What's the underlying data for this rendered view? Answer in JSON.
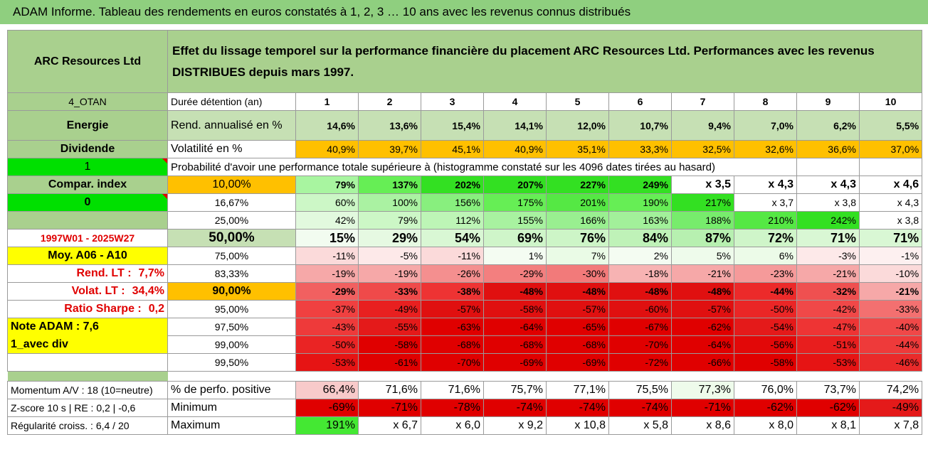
{
  "title": "ADAM Informe. Tableau des rendements en euros constatés à 1, 2, 3 … 10 ans avec les revenus connus distribués",
  "company": "ARC Resources Ltd",
  "description": "Effet du lissage temporel sur la performance financière du placement ARC Resources Ltd. Performances avec les revenus DISTRIBUES depuis mars 1997.",
  "left": {
    "code": "4_OTAN",
    "sector": "Energie",
    "dividend": "Dividende",
    "one": "1",
    "compar": "Compar. index",
    "zero": "0",
    "period": "1997W01 - 2025W27",
    "moy": "Moy. A06 - A10",
    "rend_label": "Rend. LT :",
    "rend_value": "7,7%",
    "volat_label": "Volat. LT :",
    "volat_value": "34,4%",
    "sharpe_label": "Ratio Sharpe :",
    "sharpe_value": "0,2",
    "note": "Note ADAM : 7,6",
    "avec_div": "1_avec div",
    "momentum": "Momentum A/V : 18 (10=neutre)",
    "zscore": "Z-score 10 s | RE : 0,2 | -0,6",
    "regularite": "Régularité croiss. : 6,4 / 20"
  },
  "labels": {
    "duree": "Durée détention (an)",
    "rend": "Rend. annualisé en %",
    "volat": "Volatilité en %",
    "proba": "Probabilité d'avoir une performance totale supérieure à (histogramme constaté sur les 4096 dates tirées au hasard)",
    "pct_pos": "% de perfo. positive",
    "minimum": "Minimum",
    "maximum": "Maximum"
  },
  "years": [
    "1",
    "2",
    "3",
    "4",
    "5",
    "6",
    "7",
    "8",
    "9",
    "10"
  ],
  "rend": [
    "14,6%",
    "13,6%",
    "15,4%",
    "14,1%",
    "12,0%",
    "10,7%",
    "9,4%",
    "7,0%",
    "6,2%",
    "5,5%"
  ],
  "volat": [
    "40,9%",
    "39,7%",
    "45,1%",
    "40,9%",
    "35,1%",
    "33,3%",
    "32,5%",
    "32,6%",
    "36,6%",
    "37,0%"
  ],
  "prob_rows": [
    {
      "q": "10,00%",
      "v": [
        "79%",
        "137%",
        "202%",
        "207%",
        "227%",
        "249%",
        "x 3,5",
        "x 4,3",
        "x 4,3",
        "x 4,6"
      ]
    },
    {
      "q": "16,67%",
      "v": [
        "60%",
        "100%",
        "156%",
        "175%",
        "201%",
        "190%",
        "217%",
        "x 3,7",
        "x 3,8",
        "x 4,3"
      ]
    },
    {
      "q": "25,00%",
      "v": [
        "42%",
        "79%",
        "112%",
        "155%",
        "166%",
        "163%",
        "188%",
        "210%",
        "242%",
        "x 3,8"
      ]
    },
    {
      "q": "50,00%",
      "v": [
        "15%",
        "29%",
        "54%",
        "69%",
        "76%",
        "84%",
        "87%",
        "72%",
        "71%",
        "71%"
      ]
    },
    {
      "q": "75,00%",
      "v": [
        "-11%",
        "-5%",
        "-11%",
        "1%",
        "7%",
        "2%",
        "5%",
        "6%",
        "-3%",
        "-1%"
      ]
    },
    {
      "q": "83,33%",
      "v": [
        "-19%",
        "-19%",
        "-26%",
        "-29%",
        "-30%",
        "-18%",
        "-21%",
        "-23%",
        "-21%",
        "-10%"
      ]
    },
    {
      "q": "90,00%",
      "v": [
        "-29%",
        "-33%",
        "-38%",
        "-48%",
        "-48%",
        "-48%",
        "-48%",
        "-44%",
        "-32%",
        "-21%"
      ]
    },
    {
      "q": "95,00%",
      "v": [
        "-37%",
        "-49%",
        "-57%",
        "-58%",
        "-57%",
        "-60%",
        "-57%",
        "-50%",
        "-42%",
        "-33%"
      ]
    },
    {
      "q": "97,50%",
      "v": [
        "-43%",
        "-55%",
        "-63%",
        "-64%",
        "-65%",
        "-67%",
        "-62%",
        "-54%",
        "-47%",
        "-40%"
      ]
    },
    {
      "q": "99,00%",
      "v": [
        "-50%",
        "-58%",
        "-68%",
        "-68%",
        "-68%",
        "-70%",
        "-64%",
        "-56%",
        "-51%",
        "-44%"
      ]
    },
    {
      "q": "99,50%",
      "v": [
        "-53%",
        "-61%",
        "-70%",
        "-69%",
        "-69%",
        "-72%",
        "-66%",
        "-58%",
        "-53%",
        "-46%"
      ]
    }
  ],
  "pct_pos": [
    "66,4%",
    "71,6%",
    "71,6%",
    "75,7%",
    "77,1%",
    "75,5%",
    "77,3%",
    "76,0%",
    "73,7%",
    "74,2%"
  ],
  "minimum": [
    "-69%",
    "-71%",
    "-78%",
    "-74%",
    "-74%",
    "-74%",
    "-71%",
    "-62%",
    "-62%",
    "-49%"
  ],
  "maximum": [
    "191%",
    "x 6,7",
    "x 6,0",
    "x 9,2",
    "x 10,8",
    "x 5,8",
    "x 8,6",
    "x 8,0",
    "x 8,1",
    "x 7,8"
  ],
  "colors": {
    "prob_rows": [
      [
        "#a8f5a0",
        "#66ee55",
        "#33e022",
        "#33e022",
        "#33e022",
        "#33e022",
        "#ffffff",
        "#ffffff",
        "#ffffff",
        "#ffffff"
      ],
      [
        "#ccf7c6",
        "#aaf2a2",
        "#88ef7e",
        "#66ee55",
        "#55e844",
        "#66ee55",
        "#33e022",
        "#ffffff",
        "#ffffff",
        "#ffffff"
      ],
      [
        "#e2f9de",
        "#ccf7c6",
        "#bdf5b6",
        "#a8f2a0",
        "#99ef90",
        "#a2f09a",
        "#77ec6c",
        "#55e844",
        "#33e022",
        "#ffffff"
      ],
      [
        "#f2fcf0",
        "#e6f9e2",
        "#d9f7d4",
        "#cff5c9",
        "#cdf5c7",
        "#bff2b8",
        "#b7f0b0",
        "#cff5c9",
        "#d9f7d4",
        "#d9f7d4"
      ],
      [
        "#fbdada",
        "#fde9e9",
        "#fbdada",
        "#f4fcf2",
        "#eafbe6",
        "#f4fcf2",
        "#eefbeb",
        "#ecfbe8",
        "#fde9e9",
        "#fdf0f0"
      ],
      [
        "#f6a8a8",
        "#f6a8a8",
        "#f48f8f",
        "#f37f7f",
        "#f27a7a",
        "#f7b3b3",
        "#f6a8a8",
        "#f59a9a",
        "#f6a8a8",
        "#fbdada"
      ],
      [
        "#f16060",
        "#ef4a4a",
        "#ee3333",
        "#e01010",
        "#e01010",
        "#e01010",
        "#e01010",
        "#ec2a2a",
        "#ef5050",
        "#f6a8a8"
      ],
      [
        "#f04040",
        "#e82020",
        "#e01010",
        "#e01010",
        "#e01010",
        "#e01010",
        "#e01010",
        "#ea2626",
        "#f04848",
        "#f37070"
      ],
      [
        "#ee3a3a",
        "#e41a1a",
        "#e00000",
        "#e00000",
        "#e00000",
        "#e00000",
        "#e00000",
        "#e41a1a",
        "#ee3434",
        "#f04848"
      ],
      [
        "#ea2424",
        "#e00000",
        "#e00000",
        "#e00000",
        "#e00000",
        "#e00000",
        "#e00000",
        "#e20808",
        "#e81e1e",
        "#ee3a3a"
      ],
      [
        "#e61414",
        "#e00000",
        "#e00000",
        "#e00000",
        "#e00000",
        "#e00000",
        "#e00000",
        "#e00000",
        "#e61414",
        "#ea2a2a"
      ]
    ],
    "pct_pos": [
      "#f8caca",
      "#ffffff",
      "#ffffff",
      "#ffffff",
      "#ffffff",
      "#ffffff",
      "#eefbeb",
      "#ffffff",
      "#ffffff",
      "#ffffff"
    ],
    "minimum": [
      "#e00000",
      "#e00000",
      "#e00000",
      "#e00000",
      "#e00000",
      "#e00000",
      "#e00000",
      "#e00000",
      "#e00000",
      "#e41a1a"
    ],
    "maximum": [
      "#44e833",
      "#ffffff",
      "#ffffff",
      "#ffffff",
      "#ffffff",
      "#ffffff",
      "#ffffff",
      "#ffffff",
      "#ffffff",
      "#ffffff"
    ]
  }
}
